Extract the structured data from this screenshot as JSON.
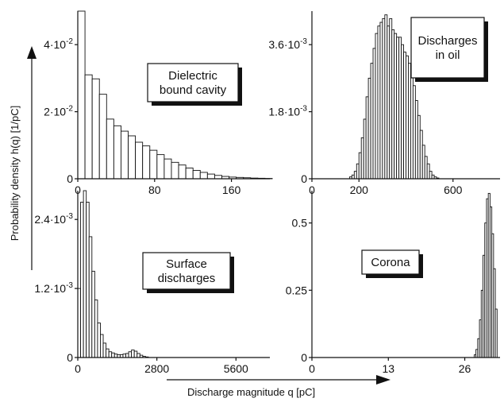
{
  "figure": {
    "ylabel": "Probability density h(q) [1/pC]",
    "xlabel": "Discharge magnitude q [pC]"
  },
  "chart_data": [
    {
      "type": "bar",
      "title_lines": [
        "Dielectric",
        "bound cavity"
      ],
      "xlim": [
        0,
        200
      ],
      "ylim": [
        0,
        0.05
      ],
      "xticks": [
        {
          "v": 0,
          "t": "0"
        },
        {
          "v": 80,
          "t": "80"
        },
        {
          "v": 160,
          "t": "160"
        }
      ],
      "yticks": [
        {
          "v": 0,
          "t": "0"
        },
        {
          "v": 0.02,
          "t": "2·10",
          "exp": "-2"
        },
        {
          "v": 0.04,
          "t": "4·10",
          "exp": "-2"
        }
      ],
      "bin_start": 0,
      "bin_width": 7.5,
      "values": [
        0.05,
        0.031,
        0.0298,
        0.0252,
        0.0178,
        0.0158,
        0.0142,
        0.0128,
        0.0109,
        0.0098,
        0.0085,
        0.0072,
        0.0059,
        0.0049,
        0.0041,
        0.0032,
        0.0025,
        0.0019,
        0.0014,
        0.001,
        0.0007,
        0.0005,
        0.0004,
        0.0003,
        0.0002,
        0.00015,
        0.0001
      ]
    },
    {
      "type": "bar",
      "title_lines": [
        "Discharges",
        "in oil"
      ],
      "xlim": [
        0,
        800
      ],
      "ylim": [
        0,
        0.0045
      ],
      "xticks": [
        {
          "v": 0,
          "t": "0"
        },
        {
          "v": 200,
          "t": "200"
        },
        {
          "v": 600,
          "t": "600"
        }
      ],
      "yticks": [
        {
          "v": 0,
          "t": "0"
        },
        {
          "v": 0.0018,
          "t": "1.8·10",
          "exp": "-3"
        },
        {
          "v": 0.0036,
          "t": "3.6·10",
          "exp": "-3"
        }
      ],
      "bin_start": 160,
      "bin_width": 10,
      "values": [
        5e-05,
        0.0001,
        0.0002,
        0.0004,
        0.0007,
        0.0011,
        0.0016,
        0.0022,
        0.0027,
        0.0031,
        0.0035,
        0.0039,
        0.0041,
        0.0042,
        0.0043,
        0.0044,
        0.0041,
        0.0043,
        0.004,
        0.0039,
        0.0038,
        0.0038,
        0.0036,
        0.0034,
        0.0033,
        0.0031,
        0.0028,
        0.0025,
        0.0021,
        0.0017,
        0.0013,
        0.0009,
        0.0006,
        0.0004,
        0.0002,
        0.0001,
        5e-05,
        2e-05
      ]
    },
    {
      "type": "bar",
      "title_lines": [
        "Surface",
        "discharges"
      ],
      "xlim": [
        0,
        6800
      ],
      "ylim": [
        0,
        0.0029
      ],
      "xticks": [
        {
          "v": 0,
          "t": "0"
        },
        {
          "v": 2800,
          "t": "2800"
        },
        {
          "v": 5600,
          "t": "5600"
        }
      ],
      "yticks": [
        {
          "v": 0,
          "t": "0"
        },
        {
          "v": 0.0012,
          "t": "1.2·10",
          "exp": "-3"
        },
        {
          "v": 0.0024,
          "t": "2.4·10",
          "exp": "-3"
        }
      ],
      "bin_start": 0,
      "bin_width": 100,
      "values": [
        0.0012,
        0.0027,
        0.0029,
        0.0027,
        0.0021,
        0.0015,
        0.001,
        0.0006,
        0.0004,
        0.00025,
        0.00015,
        0.0001,
        8e-05,
        6e-05,
        5e-05,
        5e-05,
        6e-05,
        7e-05,
        0.0001,
        0.00013,
        0.00011,
        7e-05,
        4e-05,
        2e-05,
        1e-05
      ]
    },
    {
      "type": "bar",
      "title_lines": [
        "Corona"
      ],
      "xlim": [
        0,
        32
      ],
      "ylim": [
        0,
        0.62
      ],
      "xticks": [
        {
          "v": 0,
          "t": "0"
        },
        {
          "v": 13,
          "t": "13"
        },
        {
          "v": 26,
          "t": "26"
        }
      ],
      "yticks": [
        {
          "v": 0,
          "t": "0"
        },
        {
          "v": 0.25,
          "t": "0.25"
        },
        {
          "v": 0.5,
          "t": "0.5"
        }
      ],
      "bin_start": 27.6,
      "bin_width": 0.3,
      "values": [
        0.01,
        0.03,
        0.07,
        0.14,
        0.25,
        0.38,
        0.5,
        0.59,
        0.61,
        0.56,
        0.46,
        0.33,
        0.18
      ]
    }
  ]
}
